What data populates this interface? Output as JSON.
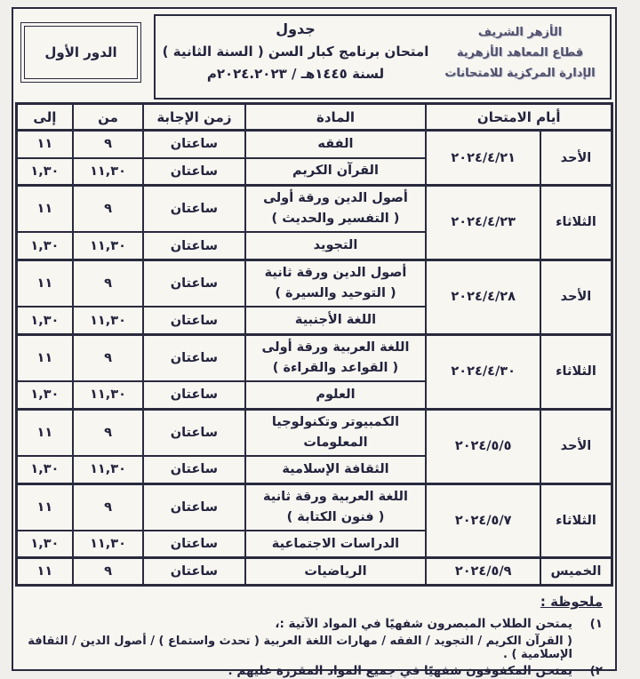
{
  "page": {
    "session_box": "الدور الأول",
    "title_line1": "جدول",
    "title_line2": "امتحان برنامج كبار السن ( السنة الثانية )",
    "title_line3": "لسنة ١٤٤٥هـ / ٢٠٢٤.٢٠٢٣م",
    "emblem_line1": "الأزهر الشريف",
    "emblem_line2": "قطاع المعاهد الأزهرية",
    "emblem_line3": "الإدارة المركزية للامتحانات"
  },
  "table": {
    "header_days": "أيام الامتحان",
    "header_subject": "المادة",
    "header_duration": "زمن الإجابة",
    "header_from": "من",
    "header_to": "إلى",
    "groups": [
      {
        "day": "الأحد",
        "date": "٢٠٢٤/٤/٢١",
        "exams": [
          {
            "subject_lines": [
              "الفقه"
            ],
            "duration": "ساعتان",
            "from": "٩",
            "to": "١١"
          },
          {
            "subject_lines": [
              "القرآن الكريم"
            ],
            "duration": "ساعتان",
            "from": "١١,٣٠",
            "to": "١,٣٠"
          }
        ]
      },
      {
        "day": "الثلاثاء",
        "date": "٢٠٢٤/٤/٢٣",
        "exams": [
          {
            "subject_lines": [
              "أصول الدين ورقة أولى",
              "( التفسير والحديث )"
            ],
            "duration": "ساعتان",
            "from": "٩",
            "to": "١١"
          },
          {
            "subject_lines": [
              "التجويد"
            ],
            "duration": "ساعتان",
            "from": "١١,٣٠",
            "to": "١,٣٠"
          }
        ]
      },
      {
        "day": "الأحد",
        "date": "٢٠٢٤/٤/٢٨",
        "exams": [
          {
            "subject_lines": [
              "أصول الدين ورقة ثانية",
              "( التوحيد والسيرة )"
            ],
            "duration": "ساعتان",
            "from": "٩",
            "to": "١١"
          },
          {
            "subject_lines": [
              "اللغة الأجنبية"
            ],
            "duration": "ساعتان",
            "from": "١١,٣٠",
            "to": "١,٣٠"
          }
        ]
      },
      {
        "day": "الثلاثاء",
        "date": "٢٠٢٤/٤/٣٠",
        "exams": [
          {
            "subject_lines": [
              "اللغة العربية ورقة أولى",
              "( القواعد والقراءة )"
            ],
            "duration": "ساعتان",
            "from": "٩",
            "to": "١١"
          },
          {
            "subject_lines": [
              "العلوم"
            ],
            "duration": "ساعتان",
            "from": "١١,٣٠",
            "to": "١,٣٠"
          }
        ]
      },
      {
        "day": "الأحد",
        "date": "٢٠٢٤/٥/٥",
        "exams": [
          {
            "subject_lines": [
              "الكمبيوتر وتكنولوجيا المعلومات"
            ],
            "duration": "ساعتان",
            "from": "٩",
            "to": "١١"
          },
          {
            "subject_lines": [
              "الثقافة الإسلامية"
            ],
            "duration": "ساعتان",
            "from": "١١,٣٠",
            "to": "١,٣٠"
          }
        ]
      },
      {
        "day": "الثلاثاء",
        "date": "٢٠٢٤/٥/٧",
        "exams": [
          {
            "subject_lines": [
              "اللغة العربية ورقة ثانية",
              "( فنون الكتابة )"
            ],
            "duration": "ساعتان",
            "from": "٩",
            "to": "١١"
          },
          {
            "subject_lines": [
              "الدراسات الاجتماعية"
            ],
            "duration": "ساعتان",
            "from": "١١,٣٠",
            "to": "١,٣٠"
          }
        ]
      },
      {
        "day": "الخميس",
        "date": "٢٠٢٤/٥/٩",
        "exams": [
          {
            "subject_lines": [
              "الرياضيات"
            ],
            "duration": "ساعتان",
            "from": "٩",
            "to": "١١"
          }
        ]
      }
    ]
  },
  "note": {
    "heading": "ملحوظة :",
    "item1_num": "١)",
    "item1_line1": "يمتحن الطلاب المبصرون شفهيًا في المواد الآتية :،",
    "item1_line2": "( القرآن الكريم / التجويد / الفقه / مهارات اللغة العربية ( تحدث واستماع ) / أصول الدين / الثقافة الإسلامية ) .",
    "item2_num": "٢)",
    "item2_line1": "يمتحن المكفوفون شفهيًا في جميع المواد المقررة عليهم ."
  },
  "colors": {
    "ink": "#23233d",
    "border": "#2a2a3e",
    "paper": "#f7f6f1"
  }
}
